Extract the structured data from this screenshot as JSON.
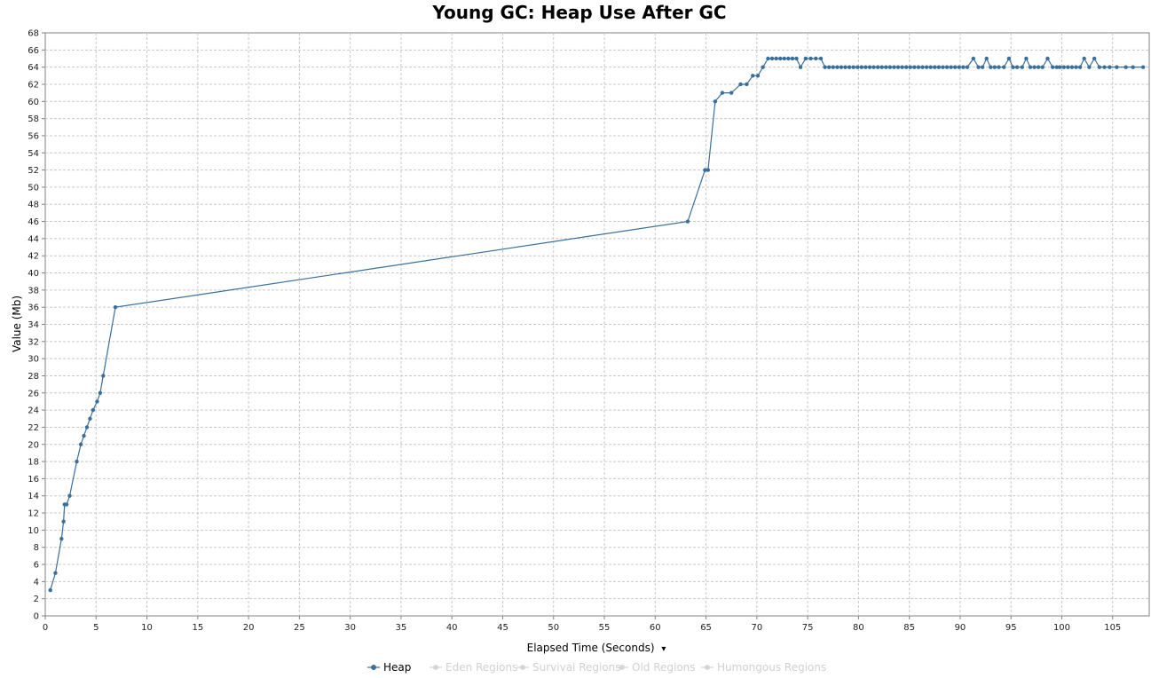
{
  "chart_data": {
    "type": "line",
    "title": "Young GC: Heap Use After GC",
    "xlabel": "Elapsed Time (Seconds)",
    "ylabel": "Value (Mb)",
    "xlim": [
      0,
      108.6
    ],
    "ylim": [
      0,
      68
    ],
    "x_ticks": [
      0,
      5,
      10,
      15,
      20,
      25,
      30,
      35,
      40,
      45,
      50,
      55,
      60,
      65,
      70,
      75,
      80,
      85,
      90,
      95,
      100,
      105
    ],
    "x_tick_labels": [
      "0",
      "5",
      "10",
      "15",
      "20",
      "25",
      "30",
      "35",
      "40",
      "45",
      "50",
      "55",
      "60",
      "65",
      "70",
      "75",
      "80",
      "85",
      "90",
      "95",
      "100",
      "105"
    ],
    "y_ticks": [
      0,
      2,
      4,
      6,
      8,
      10,
      12,
      14,
      16,
      18,
      20,
      22,
      24,
      26,
      28,
      30,
      32,
      34,
      36,
      38,
      40,
      42,
      44,
      46,
      48,
      50,
      52,
      54,
      56,
      58,
      60,
      62,
      64,
      66,
      68
    ],
    "y_tick_labels": [
      "0",
      "2",
      "4",
      "6",
      "8",
      "10",
      "12",
      "14",
      "16",
      "18",
      "20",
      "22",
      "24",
      "26",
      "28",
      "30",
      "32",
      "34",
      "36",
      "38",
      "40",
      "42",
      "44",
      "46",
      "48",
      "50",
      "52",
      "54",
      "56",
      "58",
      "60",
      "62",
      "64",
      "66",
      "68"
    ],
    "grid": true,
    "legend_position": "bottom",
    "series": [
      {
        "name": "Heap",
        "color": "#3a6f9b",
        "active": true,
        "points": [
          [
            0.5,
            3
          ],
          [
            1.0,
            5
          ],
          [
            1.6,
            9
          ],
          [
            1.8,
            11
          ],
          [
            1.9,
            13
          ],
          [
            2.1,
            13
          ],
          [
            2.4,
            14
          ],
          [
            3.1,
            18
          ],
          [
            3.5,
            20
          ],
          [
            3.8,
            21
          ],
          [
            4.1,
            22
          ],
          [
            4.4,
            23
          ],
          [
            4.7,
            24
          ],
          [
            5.1,
            25
          ],
          [
            5.4,
            26
          ],
          [
            5.7,
            28
          ],
          [
            6.9,
            36
          ],
          [
            63.2,
            46
          ],
          [
            64.9,
            52
          ],
          [
            65.2,
            52
          ],
          [
            65.9,
            60
          ],
          [
            66.6,
            61
          ],
          [
            67.5,
            61
          ],
          [
            68.4,
            62
          ],
          [
            69.0,
            62
          ],
          [
            69.6,
            63
          ],
          [
            70.1,
            63
          ],
          [
            70.6,
            64
          ],
          [
            71.1,
            65
          ],
          [
            71.5,
            65
          ],
          [
            71.9,
            65
          ],
          [
            72.3,
            65
          ],
          [
            72.7,
            65
          ],
          [
            73.1,
            65
          ],
          [
            73.5,
            65
          ],
          [
            73.9,
            65
          ],
          [
            74.3,
            64
          ],
          [
            74.8,
            65
          ],
          [
            75.3,
            65
          ],
          [
            75.8,
            65
          ],
          [
            76.3,
            65
          ],
          [
            76.7,
            64
          ],
          [
            77.1,
            64
          ],
          [
            77.5,
            64
          ],
          [
            77.9,
            64
          ],
          [
            78.3,
            64
          ],
          [
            78.7,
            64
          ],
          [
            79.1,
            64
          ],
          [
            79.5,
            64
          ],
          [
            79.9,
            64
          ],
          [
            80.3,
            64
          ],
          [
            80.7,
            64
          ],
          [
            81.1,
            64
          ],
          [
            81.5,
            64
          ],
          [
            81.9,
            64
          ],
          [
            82.3,
            64
          ],
          [
            82.7,
            64
          ],
          [
            83.1,
            64
          ],
          [
            83.5,
            64
          ],
          [
            83.9,
            64
          ],
          [
            84.3,
            64
          ],
          [
            84.7,
            64
          ],
          [
            85.1,
            64
          ],
          [
            85.5,
            64
          ],
          [
            85.9,
            64
          ],
          [
            86.3,
            64
          ],
          [
            86.7,
            64
          ],
          [
            87.1,
            64
          ],
          [
            87.5,
            64
          ],
          [
            87.9,
            64
          ],
          [
            88.3,
            64
          ],
          [
            88.7,
            64
          ],
          [
            89.1,
            64
          ],
          [
            89.5,
            64
          ],
          [
            89.9,
            64
          ],
          [
            90.3,
            64
          ],
          [
            90.7,
            64
          ],
          [
            91.3,
            65
          ],
          [
            91.8,
            64
          ],
          [
            92.2,
            64
          ],
          [
            92.6,
            65
          ],
          [
            93.0,
            64
          ],
          [
            93.4,
            64
          ],
          [
            93.8,
            64
          ],
          [
            94.3,
            64
          ],
          [
            94.8,
            65
          ],
          [
            95.2,
            64
          ],
          [
            95.6,
            64
          ],
          [
            96.1,
            64
          ],
          [
            96.5,
            65
          ],
          [
            96.9,
            64
          ],
          [
            97.3,
            64
          ],
          [
            97.7,
            64
          ],
          [
            98.1,
            64
          ],
          [
            98.6,
            65
          ],
          [
            99.1,
            64
          ],
          [
            99.5,
            64
          ],
          [
            99.8,
            64
          ],
          [
            100.2,
            64
          ],
          [
            100.6,
            64
          ],
          [
            101.0,
            64
          ],
          [
            101.4,
            64
          ],
          [
            101.8,
            64
          ],
          [
            102.2,
            65
          ],
          [
            102.7,
            64
          ],
          [
            103.2,
            65
          ],
          [
            103.7,
            64
          ],
          [
            104.2,
            64
          ],
          [
            104.7,
            64
          ],
          [
            105.4,
            64
          ],
          [
            106.3,
            64
          ],
          [
            107.0,
            64
          ],
          [
            108.0,
            64
          ]
        ]
      },
      {
        "name": "Eden Regions",
        "color": "#cccccc",
        "active": false,
        "points": []
      },
      {
        "name": "Survival Regions",
        "color": "#cccccc",
        "active": false,
        "points": []
      },
      {
        "name": "Old Regions",
        "color": "#cccccc",
        "active": false,
        "points": []
      },
      {
        "name": "Humongous Regions",
        "color": "#cccccc",
        "active": false,
        "points": []
      }
    ]
  },
  "ui": {
    "x_axis_dropdown_arrow": "▾"
  }
}
